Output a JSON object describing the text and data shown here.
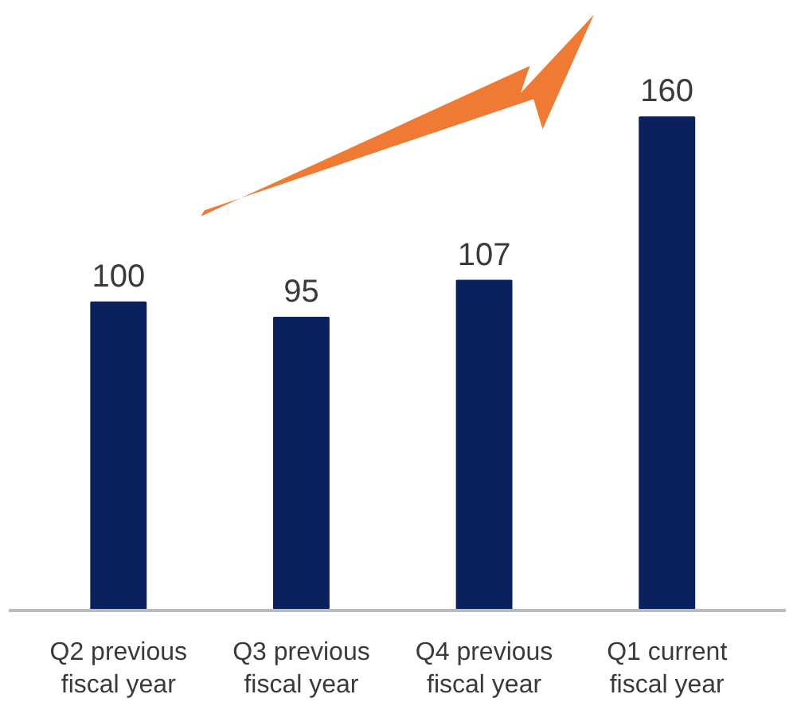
{
  "chart_data": {
    "type": "bar",
    "categories": [
      "Q2 previous fiscal year",
      "Q3 previous fiscal year",
      "Q4 previous fiscal year",
      "Q1 current fiscal year"
    ],
    "values": [
      100,
      95,
      107,
      160
    ],
    "color": "#0b215e",
    "data_labels": true,
    "grid": false
  }
}
